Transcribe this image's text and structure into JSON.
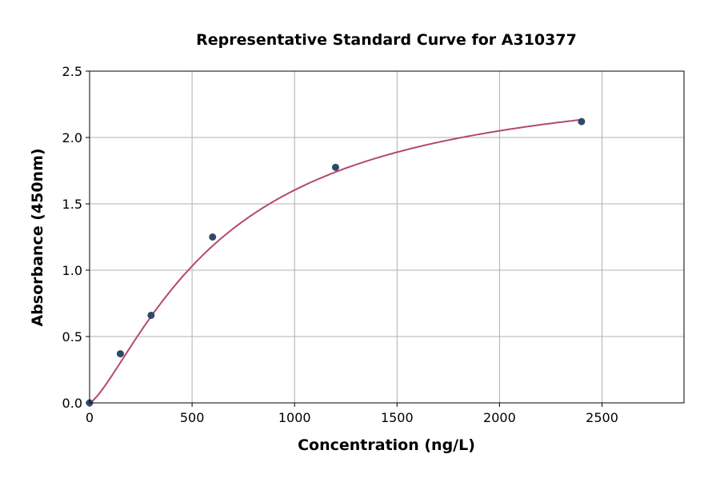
{
  "chart_data": {
    "type": "scatter",
    "title": "Representative Standard Curve for A310377",
    "xlabel": "Concentration (ng/L)",
    "ylabel": "Absorbance (450nm)",
    "xlim": [
      0,
      2900
    ],
    "ylim": [
      0,
      2.5
    ],
    "xticks": [
      0,
      500,
      1000,
      1500,
      2000,
      2500
    ],
    "yticks": [
      "0.0",
      "0.5",
      "1.0",
      "1.5",
      "2.0",
      "2.5"
    ],
    "grid": true,
    "points": {
      "x": [
        0,
        150,
        300,
        600,
        1200,
        2400
      ],
      "y": [
        0.0,
        0.37,
        0.66,
        1.25,
        1.775,
        2.12
      ]
    },
    "fit_curve": "4-parameter logistic",
    "colors": {
      "points": "#2e4a6b",
      "curve": "#b5496b",
      "grid": "#b0b0b0"
    }
  }
}
